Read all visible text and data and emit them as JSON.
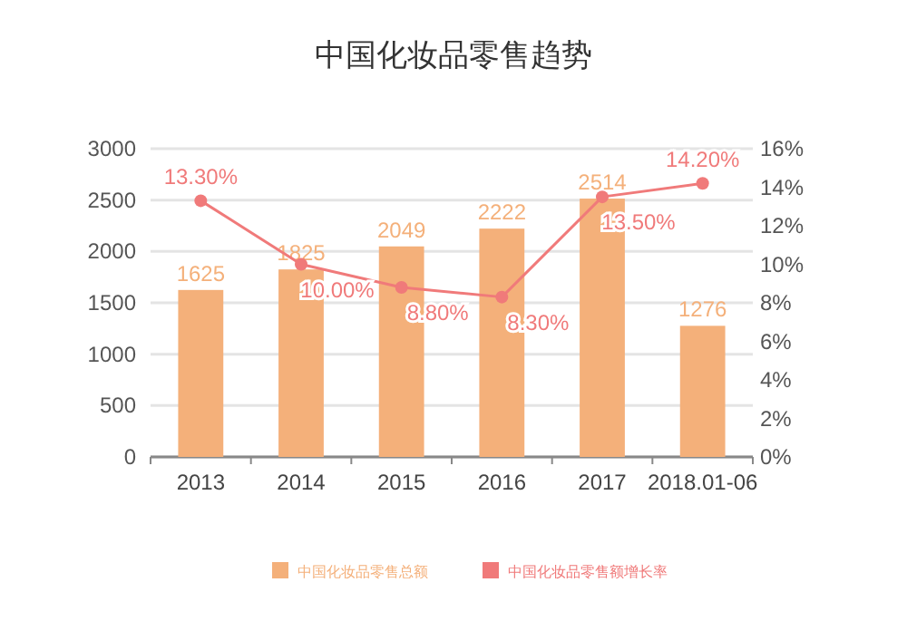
{
  "chart_data": {
    "type": "bar",
    "title": "中国化妆品零售趋势",
    "categories": [
      "2013",
      "2014",
      "2015",
      "2016",
      "2017",
      "2018.01-06"
    ],
    "series": [
      {
        "name": "中国化妆品零售总额",
        "color": "#f4b07a",
        "values": [
          1625,
          1825,
          2049,
          2222,
          2514,
          1276
        ]
      },
      {
        "name": "中国化妆品零售额增长率",
        "type": "line",
        "axis": "y2",
        "color": "#f07a7a",
        "values": [
          13.3,
          10.0,
          8.8,
          8.3,
          13.5,
          14.2
        ],
        "value_labels": [
          "13.30%",
          "10.00%",
          "8.80%",
          "8.30%",
          "13.50%",
          "14.20%"
        ]
      }
    ],
    "ylim": [
      0,
      3000
    ],
    "yticks": [
      0,
      500,
      1000,
      1500,
      2000,
      2500,
      3000
    ],
    "y2lim": [
      0,
      16
    ],
    "y2ticks": [
      {
        "value": 0,
        "label": "0%"
      },
      {
        "value": 2,
        "label": "2%"
      },
      {
        "value": 4,
        "label": "4%"
      },
      {
        "value": 6,
        "label": "6%"
      },
      {
        "value": 8,
        "label": "8%"
      },
      {
        "value": 10,
        "label": "10%"
      },
      {
        "value": 12,
        "label": "12%"
      },
      {
        "value": 14,
        "label": "14%"
      },
      {
        "value": 16,
        "label": "16%"
      }
    ],
    "grid": "y",
    "legend": "bottom",
    "marker": "circle",
    "data_labels": true
  }
}
